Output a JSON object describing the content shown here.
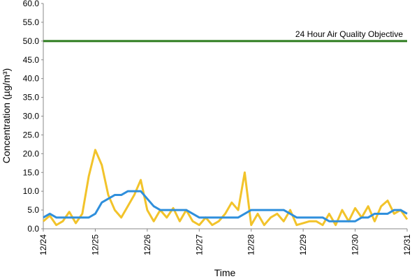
{
  "chart_data": {
    "type": "line",
    "x_label": "Time",
    "y_label": "Concentration (µg/m³)",
    "x": [
      0,
      0.125,
      0.25,
      0.375,
      0.5,
      0.625,
      0.75,
      0.875,
      1,
      1.125,
      1.25,
      1.375,
      1.5,
      1.625,
      1.75,
      1.875,
      2,
      2.125,
      2.25,
      2.375,
      2.5,
      2.625,
      2.75,
      2.875,
      3,
      3.125,
      3.25,
      3.375,
      3.5,
      3.625,
      3.75,
      3.875,
      4,
      4.125,
      4.25,
      4.375,
      4.5,
      4.625,
      4.75,
      4.875,
      5,
      5.125,
      5.25,
      5.375,
      5.5,
      5.625,
      5.75,
      5.875,
      6,
      6.125,
      6.25,
      6.375,
      6.5,
      6.625,
      6.75,
      6.875,
      7
    ],
    "series": [
      {
        "color": "#f2c32a",
        "values": [
          2,
          3.5,
          1,
          2,
          4.5,
          1.5,
          4,
          14,
          21,
          17,
          9,
          5,
          3,
          6,
          9,
          13,
          5,
          2,
          5,
          3,
          5.5,
          2,
          5,
          2,
          1,
          3,
          1,
          2,
          4,
          7,
          5,
          15,
          1,
          4,
          1,
          3,
          4,
          2,
          5,
          1,
          1.5,
          2,
          2,
          1,
          4,
          1,
          5,
          2,
          5.5,
          3,
          6,
          2,
          6,
          7.5,
          4,
          5,
          2.5
        ]
      },
      {
        "color": "#2f8fdc",
        "values": [
          3,
          4,
          3,
          3,
          3,
          3,
          3,
          3,
          4,
          7,
          8,
          9,
          9,
          10,
          10,
          10,
          8,
          6,
          5,
          5,
          5,
          5,
          5,
          4,
          3,
          3,
          3,
          3,
          3,
          3,
          3,
          4,
          5,
          5,
          5,
          5,
          5,
          5,
          4,
          3,
          3,
          3,
          3,
          3,
          2,
          2,
          2,
          2,
          2,
          3,
          3,
          4,
          4,
          4,
          5,
          5,
          4
        ]
      }
    ],
    "objective": {
      "value": 50,
      "label": "24 Hour Air Quality Objective",
      "color": "#2e7d1f"
    },
    "xlim": [
      0,
      7
    ],
    "xticks": [
      {
        "value": 0,
        "label": "12/24"
      },
      {
        "value": 1,
        "label": "12/25"
      },
      {
        "value": 2,
        "label": "12/26"
      },
      {
        "value": 3,
        "label": "12/27"
      },
      {
        "value": 4,
        "label": "12/28"
      },
      {
        "value": 5,
        "label": "12/29"
      },
      {
        "value": 6,
        "label": "12/30"
      },
      {
        "value": 7,
        "label": "12/31"
      }
    ],
    "ylim": [
      0,
      60
    ],
    "yticks": [
      {
        "value": 0,
        "label": "0.0"
      },
      {
        "value": 5,
        "label": "5.0"
      },
      {
        "value": 10,
        "label": "10.0"
      },
      {
        "value": 15,
        "label": "15.0"
      },
      {
        "value": 20,
        "label": "20.0"
      },
      {
        "value": 25,
        "label": "25.0"
      },
      {
        "value": 30,
        "label": "30.0"
      },
      {
        "value": 35,
        "label": "35.0"
      },
      {
        "value": 40,
        "label": "40.0"
      },
      {
        "value": 45,
        "label": "45.0"
      },
      {
        "value": 50,
        "label": "50.0"
      },
      {
        "value": 55,
        "label": "55.0"
      },
      {
        "value": 60,
        "label": "60.0"
      }
    ]
  }
}
